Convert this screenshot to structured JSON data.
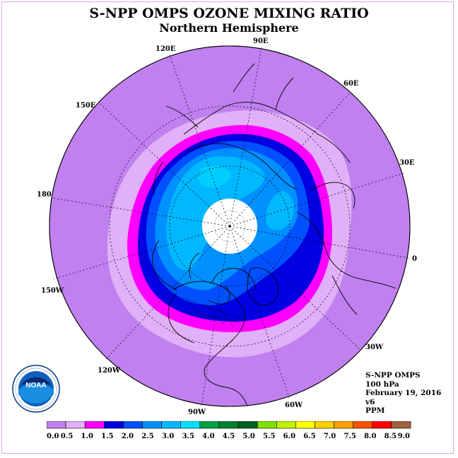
{
  "title": "S-NPP OMPS OZONE MIXING RATIO",
  "subtitle": "Northern Hemisphere",
  "longitude_labels": [
    "90E",
    "60E",
    "30E",
    "0",
    "30W",
    "60W",
    "90W",
    "120W",
    "150W",
    "180",
    "150E",
    "120E"
  ],
  "info": {
    "instrument": "S-NPP OMPS",
    "level": "100 hPa",
    "date": "February 19, 2016",
    "version": "v6",
    "units": "PPM"
  },
  "logo": {
    "text": "NOAA",
    "ring_text": "NATIONAL OCEANIC AND ATMOSPHERIC ADMINISTRATION · U.S. DEPARTMENT OF COMMERCE"
  },
  "colorbar": {
    "labels": [
      "0.0",
      "0.5",
      "1.0",
      "1.5",
      "2.0",
      "2.5",
      "3.0",
      "3.5",
      "4.0",
      "4.5",
      "5.0",
      "5.5",
      "6.0",
      "6.5",
      "7.0",
      "7.5",
      "8.0",
      "8.5",
      "9.0"
    ],
    "colors": [
      "#c080f0",
      "#e0b0f8",
      "#ff00ff",
      "#0000e0",
      "#0050ff",
      "#0090ff",
      "#00b8ff",
      "#00e0ff",
      "#00a040",
      "#008030",
      "#006020",
      "#80e000",
      "#c0f000",
      "#ffff00",
      "#ffd000",
      "#ffa000",
      "#ff5000",
      "#ff0000",
      "#a06040"
    ]
  },
  "colors": {
    "background_level": "#c080f0",
    "no_data_hole": "#ffffff"
  }
}
